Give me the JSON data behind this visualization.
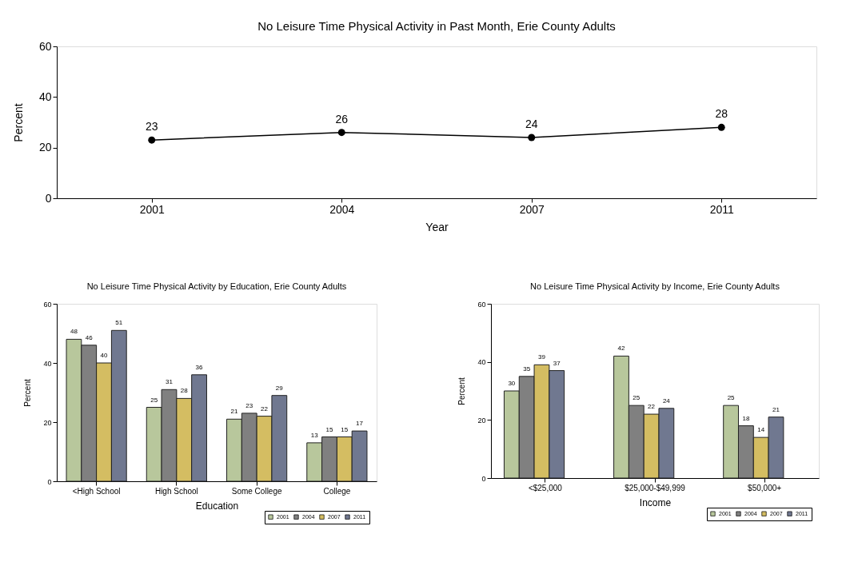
{
  "chart_data": [
    {
      "type": "line",
      "title": "No Leisure Time Physical Activity in Past Month, Erie County Adults",
      "xlabel": "Year",
      "ylabel": "Percent",
      "categories": [
        "2001",
        "2004",
        "2007",
        "2011"
      ],
      "series": [
        {
          "color": "#000000",
          "values": [
            23,
            26,
            24,
            28
          ]
        }
      ],
      "ylim": [
        0,
        60
      ],
      "yticks": [
        0,
        20,
        40,
        60
      ],
      "marker": "circle",
      "line_style": "solid",
      "data_labels": true,
      "grid": false,
      "legend": false
    },
    {
      "type": "bar",
      "title": "No Leisure Time Physical Activity by Education, Erie County Adults",
      "xlabel": "Education",
      "ylabel": "Percent",
      "categories": [
        "<High School",
        "High School",
        "Some College",
        "College"
      ],
      "series": [
        {
          "name": "2001",
          "color": "#b8c79c",
          "values": [
            48,
            25,
            21,
            13
          ]
        },
        {
          "name": "2004",
          "color": "#808080",
          "values": [
            46,
            31,
            23,
            15
          ]
        },
        {
          "name": "2007",
          "color": "#d4bd62",
          "values": [
            40,
            28,
            22,
            15
          ]
        },
        {
          "name": "2011",
          "color": "#707890",
          "values": [
            51,
            36,
            29,
            17
          ]
        }
      ],
      "ylim": [
        0,
        60
      ],
      "yticks": [
        0,
        20,
        40,
        60
      ],
      "data_labels": true,
      "grid": false,
      "legend": "bottom right"
    },
    {
      "type": "bar",
      "title": "No Leisure Time Physical Activity by Income, Erie County Adults",
      "xlabel": "Income",
      "ylabel": "Percent",
      "categories": [
        "<$25,000",
        "$25,000-$49,999",
        "$50,000+"
      ],
      "series": [
        {
          "name": "2001",
          "color": "#b8c79c",
          "values": [
            30,
            42,
            25
          ]
        },
        {
          "name": "2004",
          "color": "#808080",
          "values": [
            35,
            25,
            18
          ]
        },
        {
          "name": "2007",
          "color": "#d4bd62",
          "values": [
            39,
            22,
            14
          ]
        },
        {
          "name": "2011",
          "color": "#707890",
          "values": [
            37,
            24,
            21
          ]
        }
      ],
      "ylim": [
        0,
        60
      ],
      "yticks": [
        0,
        20,
        40,
        60
      ],
      "data_labels": true,
      "grid": false,
      "legend": "bottom right"
    }
  ]
}
